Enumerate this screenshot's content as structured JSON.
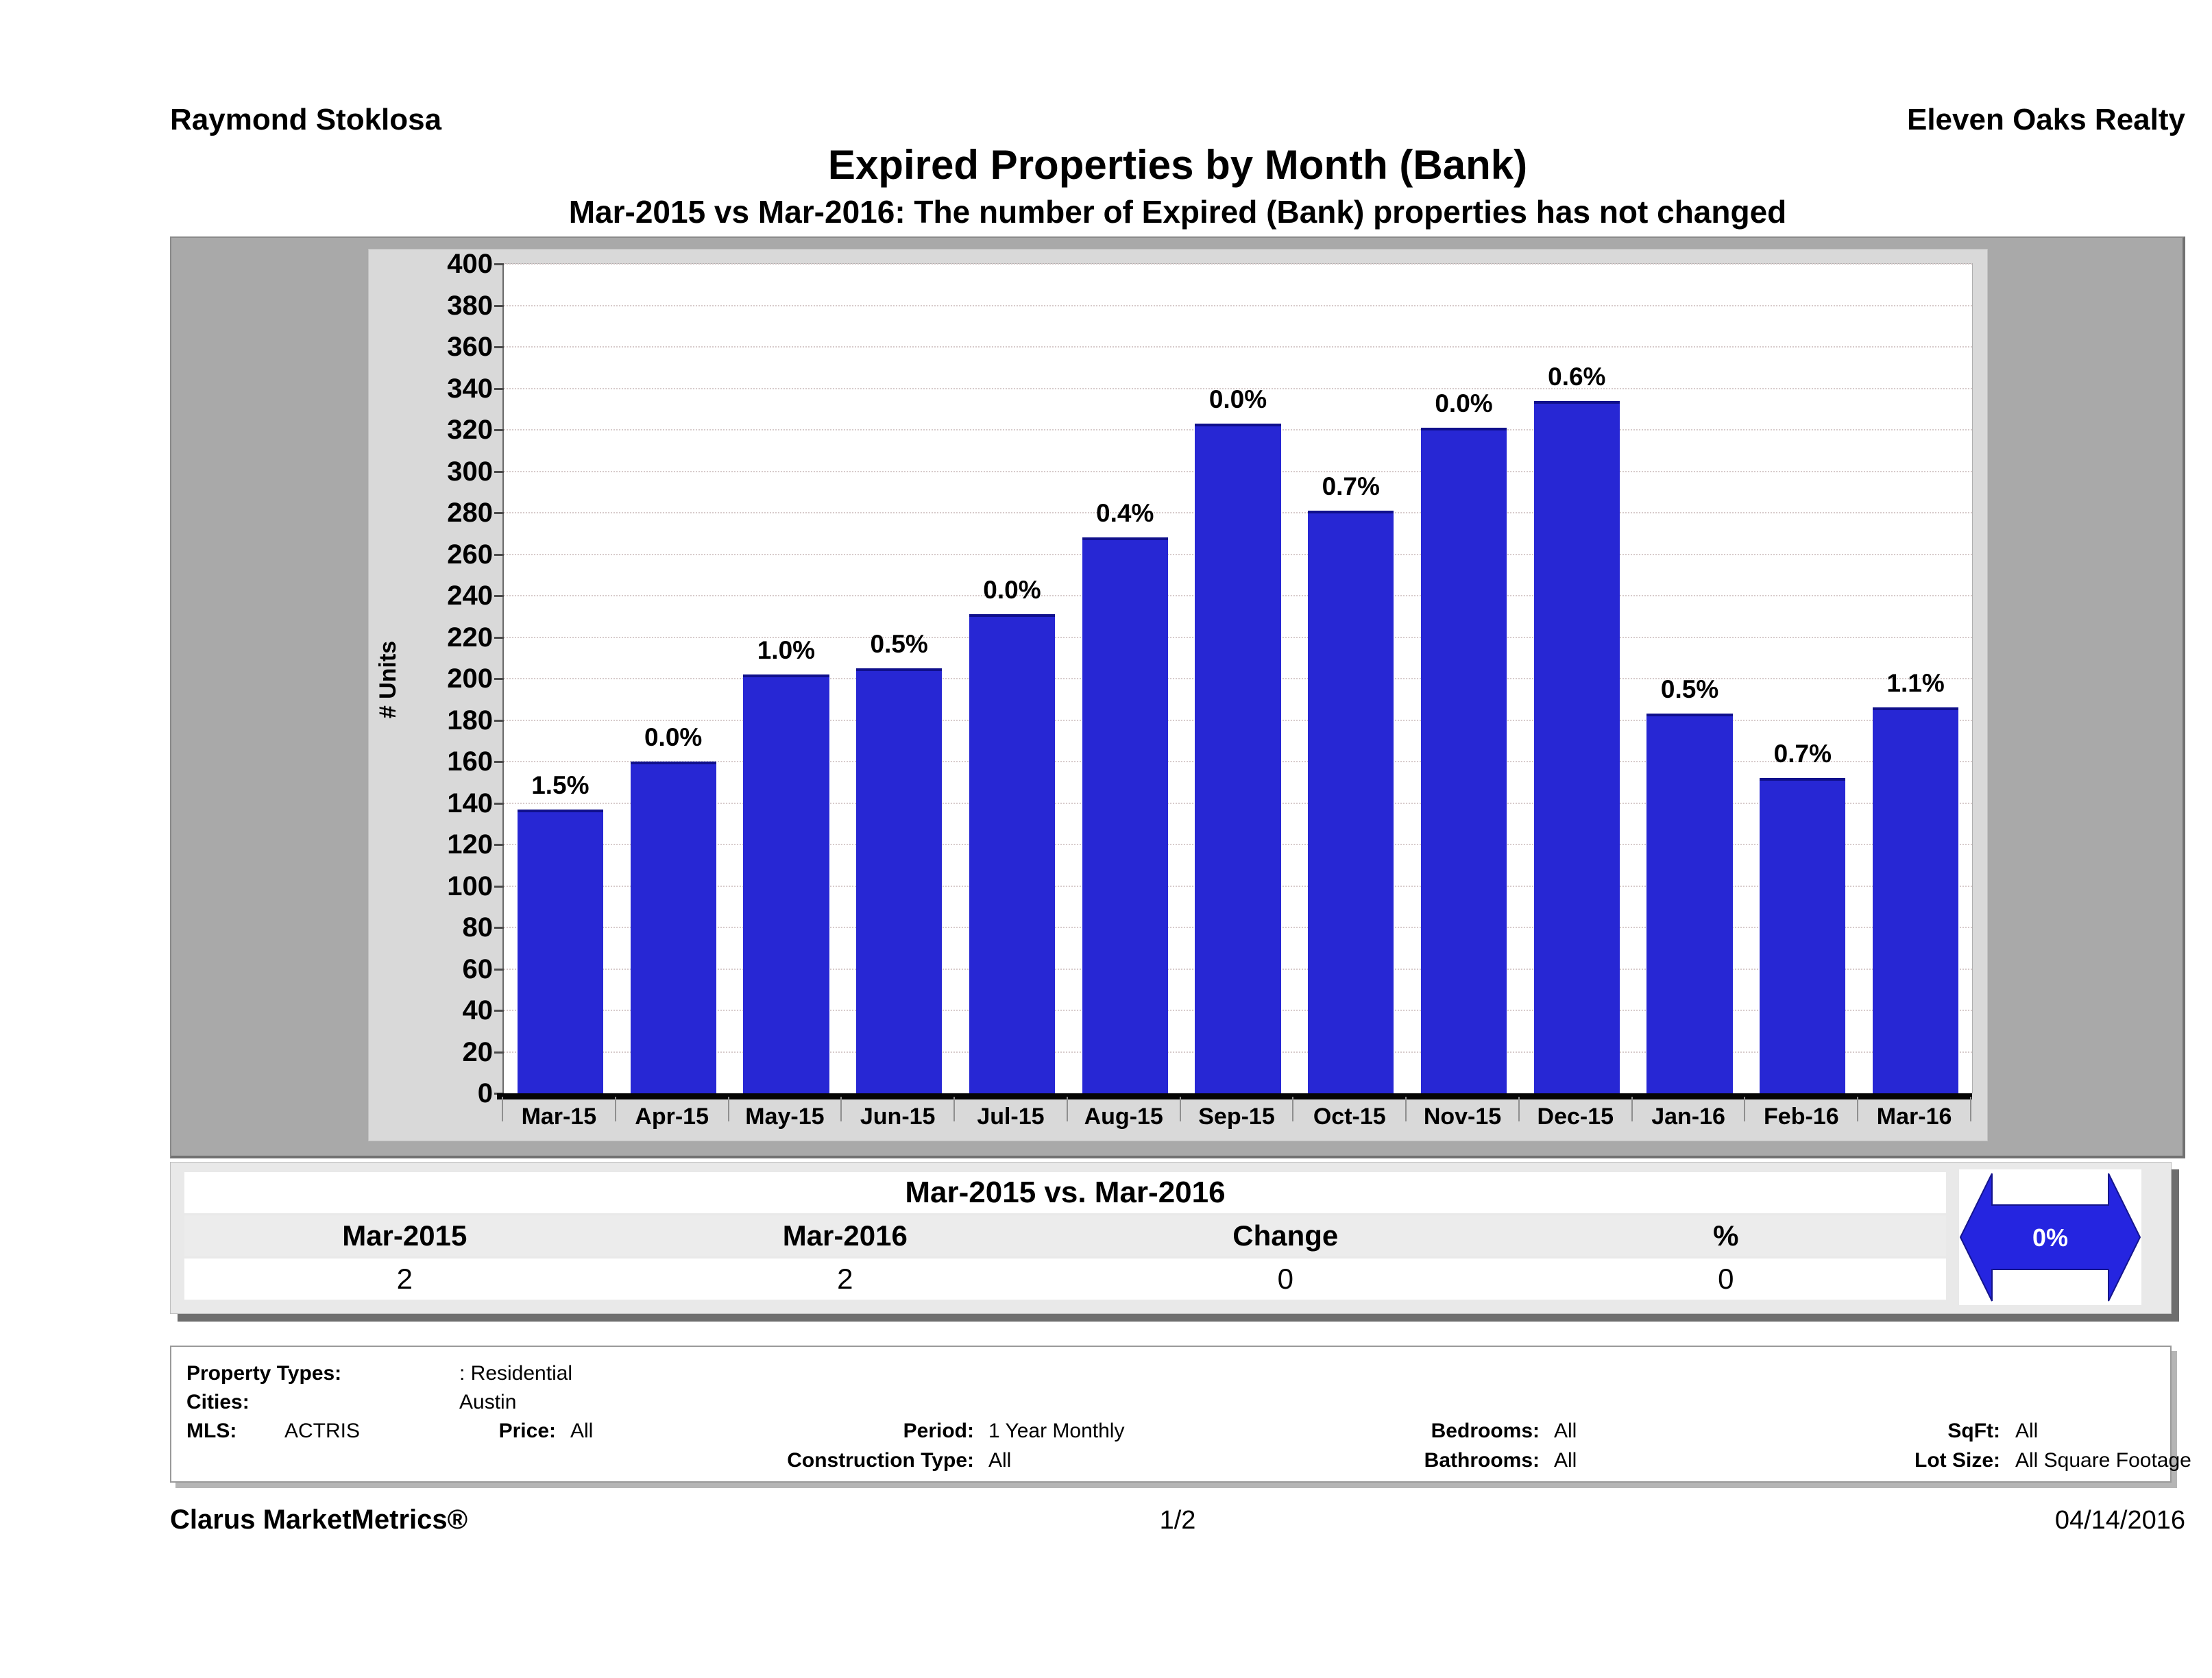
{
  "header": {
    "agent": "Raymond Stoklosa",
    "company": "Eleven Oaks Realty",
    "title": "Expired Properties by Month (Bank)",
    "subtitle": "Mar-2015 vs Mar-2016: The number of Expired (Bank)  properties has not changed"
  },
  "chart_data": {
    "type": "bar",
    "title": "Expired Properties by Month (Bank)",
    "ylabel": "# Units",
    "xlabel": "",
    "ylim": [
      0,
      400
    ],
    "ytick_step": 20,
    "grid": true,
    "legend": "none",
    "bar_color": "#2727d4",
    "categories": [
      "Mar-15",
      "Apr-15",
      "May-15",
      "Jun-15",
      "Jul-15",
      "Aug-15",
      "Sep-15",
      "Oct-15",
      "Nov-15",
      "Dec-15",
      "Jan-16",
      "Feb-16",
      "Mar-16"
    ],
    "values": [
      137,
      160,
      202,
      205,
      231,
      268,
      323,
      281,
      321,
      334,
      183,
      152,
      186
    ],
    "point_labels": [
      "1.5%",
      "0.0%",
      "1.0%",
      "0.5%",
      "0.0%",
      "0.4%",
      "0.0%",
      "0.7%",
      "0.0%",
      "0.6%",
      "0.5%",
      "0.7%",
      "1.1%"
    ]
  },
  "summary": {
    "title": "Mar-2015 vs. Mar-2016",
    "columns": [
      "Mar-2015",
      "Mar-2016",
      "Change",
      "%"
    ],
    "values": [
      "2",
      "2",
      "0",
      "0"
    ],
    "badge": "0%",
    "badge_color": "#2525e0"
  },
  "filters": {
    "rows": [
      [
        {
          "label": "Property Types:",
          "value": ": Residential",
          "col": "la"
        }
      ],
      [
        {
          "label": "Cities:",
          "value": "Austin",
          "col": "la"
        }
      ],
      [
        {
          "label": "MLS:",
          "value": "ACTRIS",
          "col": "lm"
        },
        {
          "label": "Price:",
          "value": "All",
          "col": "lp"
        },
        {
          "label": "Period:",
          "value": "1 Year Monthly",
          "col": "ld"
        },
        {
          "label": "Bedrooms:",
          "value": "All",
          "col": "lb"
        },
        {
          "label": "SqFt:",
          "value": "All",
          "col": "ls"
        }
      ],
      [
        {
          "label": "Construction Type:",
          "value": "All",
          "col": "ld"
        },
        {
          "label": "Bathrooms:",
          "value": "All",
          "col": "lb"
        },
        {
          "label": "Lot Size:",
          "value": "All Square Footage",
          "col": "ls"
        }
      ]
    ]
  },
  "footer": {
    "brand": "Clarus MarketMetrics®",
    "page": "1/2",
    "date": "04/14/2016"
  }
}
